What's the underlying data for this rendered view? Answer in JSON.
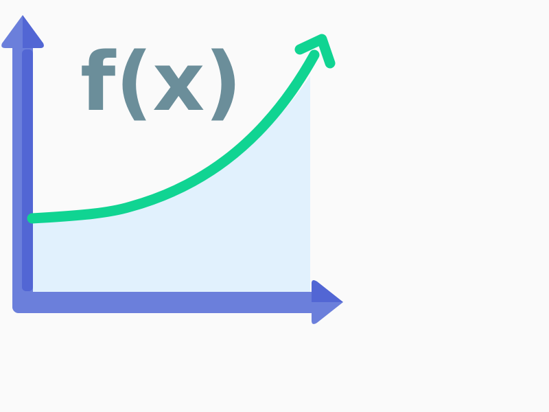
{
  "illustration": {
    "label": "f(x)",
    "colors": {
      "background": "#fafafa",
      "area_fill": "#e1f1fd",
      "curve": "#10d492",
      "axis": "#6b7fdb",
      "axis_shadow": "#5266d4",
      "label": "#6b8e9a"
    }
  }
}
